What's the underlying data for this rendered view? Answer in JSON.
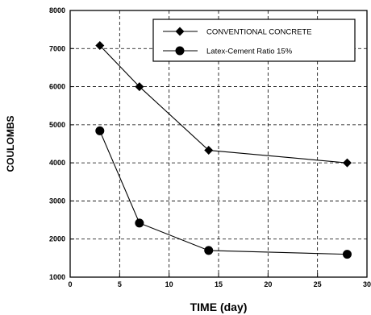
{
  "chart_data": {
    "type": "line",
    "xlabel": "TIME (day)",
    "ylabel": "COULOMBS",
    "xlim": [
      0,
      30
    ],
    "ylim": [
      1000,
      8000
    ],
    "x_ticks": [
      0,
      5,
      10,
      15,
      20,
      25,
      30
    ],
    "y_ticks": [
      1000,
      2000,
      3000,
      4000,
      5000,
      6000,
      7000,
      8000
    ],
    "grid": true,
    "legend_position": "top-right",
    "series": [
      {
        "name": "CONVENTIONAL CONCRETE",
        "marker": "diamond",
        "color": "#000000",
        "x": [
          3,
          7,
          14,
          28
        ],
        "y": [
          7080,
          6000,
          4330,
          4000
        ]
      },
      {
        "name": "Latex-Cement Ratio 15%",
        "marker": "circle",
        "color": "#000000",
        "x": [
          3,
          7,
          14,
          28
        ],
        "y": [
          4840,
          2420,
          1700,
          1600
        ]
      }
    ]
  }
}
